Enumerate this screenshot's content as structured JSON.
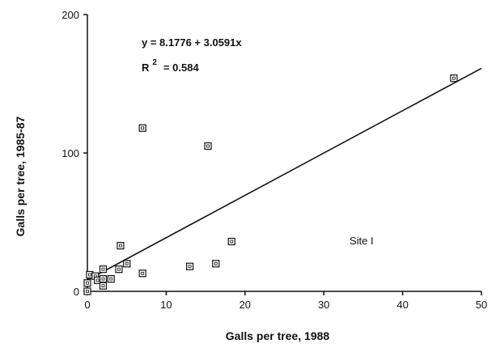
{
  "chart_data": {
    "type": "scatter",
    "title": "",
    "xlabel": "Galls per tree, 1988",
    "ylabel": "Galls per tree, 1985-87",
    "xlim": [
      0,
      50
    ],
    "ylim": [
      0,
      200
    ],
    "x_ticks": [
      0,
      10,
      20,
      30,
      40,
      50
    ],
    "y_ticks": [
      0,
      100,
      200
    ],
    "grid": false,
    "legend": "none",
    "marker": "square",
    "points": [
      {
        "x": 0,
        "y": 0
      },
      {
        "x": 0,
        "y": 6
      },
      {
        "x": 0.3,
        "y": 12
      },
      {
        "x": 1,
        "y": 11
      },
      {
        "x": 1.3,
        "y": 8
      },
      {
        "x": 2,
        "y": 4
      },
      {
        "x": 2,
        "y": 9
      },
      {
        "x": 2,
        "y": 16
      },
      {
        "x": 3,
        "y": 9
      },
      {
        "x": 4,
        "y": 16
      },
      {
        "x": 4.2,
        "y": 33
      },
      {
        "x": 5,
        "y": 20
      },
      {
        "x": 7,
        "y": 13
      },
      {
        "x": 7,
        "y": 118
      },
      {
        "x": 13,
        "y": 18
      },
      {
        "x": 15.3,
        "y": 105
      },
      {
        "x": 16.3,
        "y": 20
      },
      {
        "x": 18.3,
        "y": 36
      },
      {
        "x": 46.5,
        "y": 154
      }
    ],
    "regression": {
      "intercept": 8.1776,
      "slope": 3.0591,
      "x_range": [
        0,
        50
      ]
    },
    "annotations": {
      "equation": "y = 8.1776 + 3.0591x",
      "r2_base": "R",
      "r2_exponent": "2",
      "r2_value": "= 0.584",
      "site_label": "Site I"
    }
  }
}
